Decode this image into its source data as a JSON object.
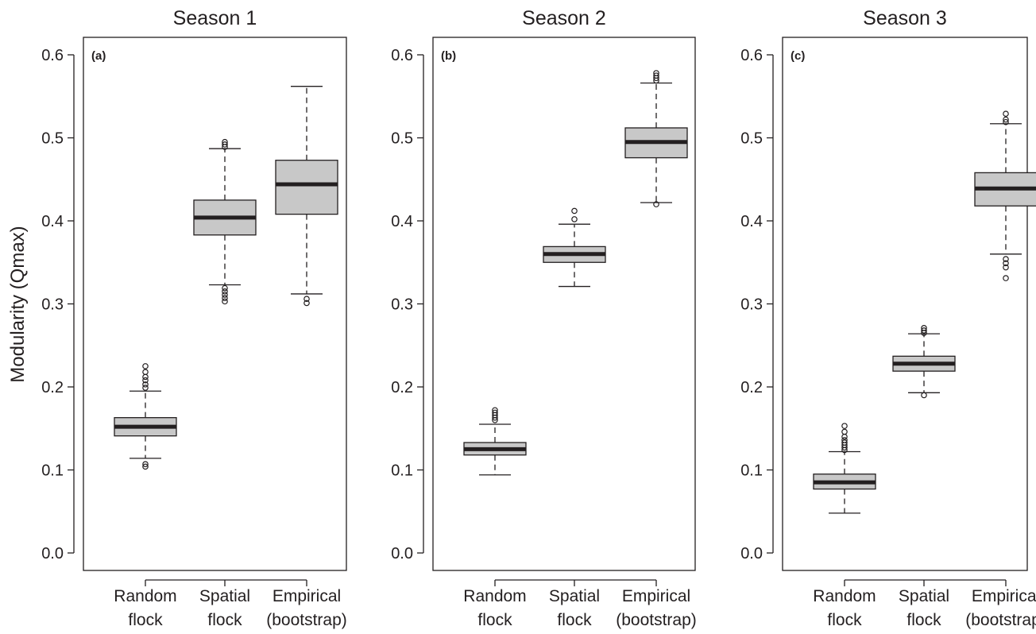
{
  "figure": {
    "ylabel": "Modularity (Qmax)"
  },
  "chart_data": [
    {
      "type": "boxplot",
      "title": "Season 1",
      "panel_label": "(a)",
      "ylim": [
        0.0,
        0.6
      ],
      "yticks": [
        "0.0",
        "0.1",
        "0.2",
        "0.3",
        "0.4",
        "0.5",
        "0.6"
      ],
      "categories": [
        [
          "Random",
          "flock"
        ],
        [
          "Spatial",
          "flock"
        ],
        [
          "Empirical",
          "(bootstrap)"
        ]
      ],
      "boxes": [
        {
          "whisker_low": 0.114,
          "q1": 0.141,
          "median": 0.152,
          "q3": 0.163,
          "whisker_high": 0.195,
          "outliers": [
            0.104,
            0.107,
            0.199,
            0.203,
            0.208,
            0.212,
            0.218,
            0.225
          ]
        },
        {
          "whisker_low": 0.323,
          "q1": 0.383,
          "median": 0.404,
          "q3": 0.425,
          "whisker_high": 0.487,
          "outliers": [
            0.303,
            0.307,
            0.311,
            0.315,
            0.319,
            0.489,
            0.492,
            0.495
          ]
        },
        {
          "whisker_low": 0.312,
          "q1": 0.408,
          "median": 0.444,
          "q3": 0.473,
          "whisker_high": 0.562,
          "outliers": [
            0.301,
            0.306
          ]
        }
      ]
    },
    {
      "type": "boxplot",
      "title": "Season 2",
      "panel_label": "(b)",
      "ylim": [
        0.0,
        0.6
      ],
      "yticks": [
        "0.0",
        "0.1",
        "0.2",
        "0.3",
        "0.4",
        "0.5",
        "0.6"
      ],
      "categories": [
        [
          "Random",
          "flock"
        ],
        [
          "Spatial",
          "flock"
        ],
        [
          "Empirical",
          "(bootstrap)"
        ]
      ],
      "boxes": [
        {
          "whisker_low": 0.094,
          "q1": 0.118,
          "median": 0.125,
          "q3": 0.133,
          "whisker_high": 0.155,
          "outliers": [
            0.16,
            0.163,
            0.166,
            0.169,
            0.172
          ]
        },
        {
          "whisker_low": 0.321,
          "q1": 0.35,
          "median": 0.36,
          "q3": 0.369,
          "whisker_high": 0.396,
          "outliers": [
            0.402,
            0.412
          ]
        },
        {
          "whisker_low": 0.422,
          "q1": 0.476,
          "median": 0.495,
          "q3": 0.512,
          "whisker_high": 0.566,
          "outliers": [
            0.42,
            0.569,
            0.572,
            0.575,
            0.578
          ]
        }
      ]
    },
    {
      "type": "boxplot",
      "title": "Season 3",
      "panel_label": "(c)",
      "ylim": [
        0.0,
        0.6
      ],
      "yticks": [
        "0.0",
        "0.1",
        "0.2",
        "0.3",
        "0.4",
        "0.5",
        "0.6"
      ],
      "categories": [
        [
          "Random",
          "flock"
        ],
        [
          "Spatial",
          "flock"
        ],
        [
          "Empirical",
          "(bootstrap)"
        ]
      ],
      "boxes": [
        {
          "whisker_low": 0.048,
          "q1": 0.077,
          "median": 0.085,
          "q3": 0.095,
          "whisker_high": 0.122,
          "outliers": [
            0.124,
            0.127,
            0.13,
            0.133,
            0.136,
            0.14,
            0.146,
            0.153
          ]
        },
        {
          "whisker_low": 0.193,
          "q1": 0.219,
          "median": 0.228,
          "q3": 0.237,
          "whisker_high": 0.264,
          "outliers": [
            0.19,
            0.265,
            0.268,
            0.271
          ]
        },
        {
          "whisker_low": 0.36,
          "q1": 0.418,
          "median": 0.439,
          "q3": 0.458,
          "whisker_high": 0.517,
          "outliers": [
            0.331,
            0.344,
            0.349,
            0.354,
            0.519,
            0.522,
            0.529
          ]
        }
      ]
    }
  ],
  "colors": {
    "box_fill": "#c8c8c8",
    "ink": "#231f20",
    "background": "#ffffff"
  }
}
